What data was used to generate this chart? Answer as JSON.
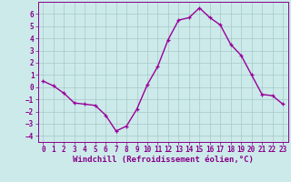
{
  "x": [
    0,
    1,
    2,
    3,
    4,
    5,
    6,
    7,
    8,
    9,
    10,
    11,
    12,
    13,
    14,
    15,
    16,
    17,
    18,
    19,
    20,
    21,
    22,
    23
  ],
  "y": [
    0.5,
    0.1,
    -0.5,
    -1.3,
    -1.4,
    -1.5,
    -2.3,
    -3.6,
    -3.2,
    -1.8,
    0.2,
    1.7,
    3.9,
    5.5,
    5.7,
    6.5,
    5.7,
    5.1,
    3.5,
    2.6,
    1.0,
    -0.6,
    -0.7,
    -1.4
  ],
  "line_color": "#990099",
  "marker": "+",
  "marker_size": 3.5,
  "linewidth": 1.0,
  "xlabel": "Windchill (Refroidissement éolien,°C)",
  "xlabel_fontsize": 6.5,
  "xlim": [
    -0.5,
    23.5
  ],
  "ylim": [
    -4.5,
    7.0
  ],
  "yticks": [
    -4,
    -3,
    -2,
    -1,
    0,
    1,
    2,
    3,
    4,
    5,
    6
  ],
  "xticks": [
    0,
    1,
    2,
    3,
    4,
    5,
    6,
    7,
    8,
    9,
    10,
    11,
    12,
    13,
    14,
    15,
    16,
    17,
    18,
    19,
    20,
    21,
    22,
    23
  ],
  "tick_fontsize": 5.5,
  "bg_color": "#cceaea",
  "grid_color": "#a8c8c8",
  "spine_color": "#880088",
  "axis_label_color": "#880088",
  "tick_color": "#880088"
}
